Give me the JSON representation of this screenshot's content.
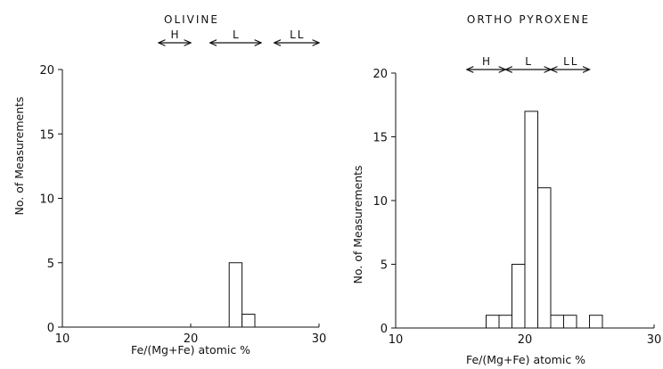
{
  "chart_data": [
    {
      "type": "bar",
      "title": "OLIVINE",
      "xlabel": "Fe/(Mg+Fe) atomic %",
      "ylabel": "No. of Measurements",
      "xlim": [
        10,
        30
      ],
      "ylim": [
        0,
        20
      ],
      "xticks": [
        "10",
        "20",
        "30"
      ],
      "yticks": [
        "0",
        "5",
        "10",
        "15",
        "20"
      ],
      "bin_width": 1,
      "bins": [
        {
          "x0": 23,
          "x1": 24,
          "value": 5
        },
        {
          "x0": 24,
          "x1": 25,
          "value": 1
        }
      ],
      "range_markers": [
        {
          "label": "H",
          "from": 17.5,
          "to": 20
        },
        {
          "label": "L",
          "from": 21.5,
          "to": 25.5
        },
        {
          "label": "LL",
          "from": 26.5,
          "to": 30
        }
      ]
    },
    {
      "type": "bar",
      "title": "ORTHO PYROXENE",
      "xlabel": "Fe/(Mg+Fe) atomic %",
      "ylabel": "No. of Measurements",
      "xlim": [
        10,
        30
      ],
      "ylim": [
        0,
        20
      ],
      "xticks": [
        "10",
        "20",
        "30"
      ],
      "yticks": [
        "0",
        "5",
        "10",
        "15",
        "20"
      ],
      "bin_width": 1,
      "bins": [
        {
          "x0": 17,
          "x1": 18,
          "value": 1
        },
        {
          "x0": 18,
          "x1": 19,
          "value": 1
        },
        {
          "x0": 19,
          "x1": 20,
          "value": 5
        },
        {
          "x0": 20,
          "x1": 21,
          "value": 17
        },
        {
          "x0": 21,
          "x1": 22,
          "value": 11
        },
        {
          "x0": 22,
          "x1": 23,
          "value": 1
        },
        {
          "x0": 23,
          "x1": 24,
          "value": 1
        },
        {
          "x0": 25,
          "x1": 26,
          "value": 1
        }
      ],
      "range_markers": [
        {
          "label": "H",
          "from": 15.5,
          "to": 18.5
        },
        {
          "label": "L",
          "from": 18.5,
          "to": 22
        },
        {
          "label": "LL",
          "from": 22,
          "to": 25
        }
      ]
    }
  ]
}
